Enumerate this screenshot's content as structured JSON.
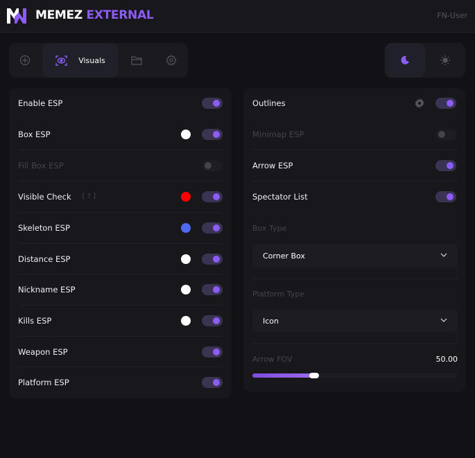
{
  "header": {
    "brand_white": "MEMEZ",
    "brand_accent": "EXTERNAL",
    "user": "FN-User",
    "logo_text": "MW"
  },
  "colors": {
    "accent": "#8b5cf6",
    "background": "#121216"
  },
  "tabs": [
    {
      "icon": "crosshair-icon"
    },
    {
      "icon": "eye-scan-icon",
      "label": "Visuals",
      "active": true
    },
    {
      "icon": "folder-icon"
    },
    {
      "icon": "gear-icon"
    }
  ],
  "theme": {
    "dark": "moon-icon",
    "light": "sun-icon",
    "active": "dark"
  },
  "left": [
    {
      "label": "Enable ESP",
      "on": true
    },
    {
      "label": "Box ESP",
      "on": true,
      "color": "#ffffff"
    },
    {
      "label": "Fill Box ESP",
      "on": false,
      "disabled": true
    },
    {
      "label": "Visible Check",
      "hint": "[ ? ]",
      "on": true,
      "color": "#ff0000"
    },
    {
      "label": "Skeleton ESP",
      "on": true,
      "color": "#4f6af0"
    },
    {
      "label": "Distance ESP",
      "on": true,
      "color": "#ffffff"
    },
    {
      "label": "Nickname ESP",
      "on": true,
      "color": "#ffffff"
    },
    {
      "label": "Kills ESP",
      "on": true,
      "color": "#ffffff"
    },
    {
      "label": "Weapon ESP",
      "on": true
    },
    {
      "label": "Platform ESP",
      "on": true
    }
  ],
  "right": {
    "toggles": [
      {
        "label": "Outlines",
        "on": true,
        "settings": true
      },
      {
        "label": "Minimap ESP",
        "on": false,
        "disabled": true
      },
      {
        "label": "Arrow ESP",
        "on": true
      },
      {
        "label": "Spectator List",
        "on": true
      }
    ],
    "box_type": {
      "label": "Box Type",
      "value": "Corner Box"
    },
    "platform_type": {
      "label": "Platform Type",
      "value": "Icon"
    },
    "arrow_fov": {
      "label": "Arrow FOV",
      "value": "50.00",
      "fill_fraction": 0.3
    }
  }
}
